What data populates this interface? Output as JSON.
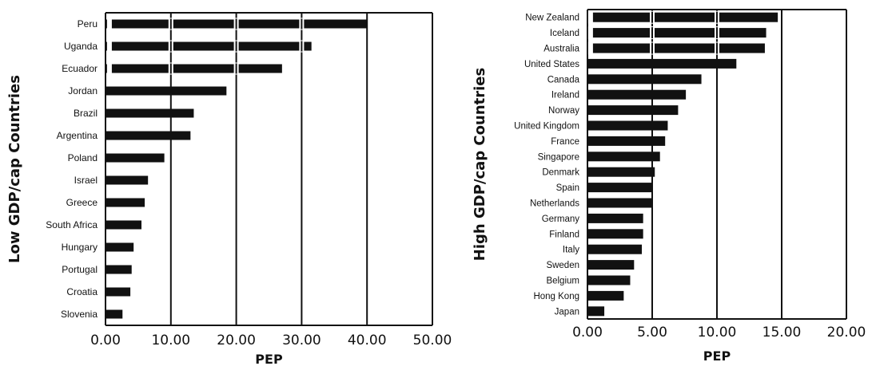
{
  "chart_data": [
    {
      "type": "bar",
      "orientation": "horizontal",
      "ylabel": "Low GDP/cap Countries",
      "xlabel": "PEP",
      "xlim": [
        0,
        50
      ],
      "xticks": [
        "0.00",
        "10.00",
        "20.00",
        "30.00",
        "40.00",
        "50.00"
      ],
      "grid": "vertical lines",
      "axis_break": "dashed breaks on the longest bars",
      "categories": [
        "Peru",
        "Uganda",
        "Ecuador",
        "Jordan",
        "Brazil",
        "Argentina",
        "Poland",
        "Israel",
        "Greece",
        "South Africa",
        "Hungary",
        "Portugal",
        "Croatia",
        "Slovenia"
      ],
      "values": [
        40,
        31.5,
        27,
        18.5,
        13.5,
        13,
        9,
        6.5,
        6,
        5.5,
        4.3,
        4,
        3.8,
        2.6
      ],
      "color": "#111111"
    },
    {
      "type": "bar",
      "orientation": "horizontal",
      "ylabel": "High GDP/cap Countries",
      "xlabel": "PEP",
      "xlim": [
        0,
        20
      ],
      "xticks": [
        "0.00",
        "5.00",
        "10.00",
        "15.00",
        "20.00"
      ],
      "grid": "vertical lines",
      "axis_break": "dashed breaks on the longest bars",
      "categories": [
        "New Zealand",
        "Iceland",
        "Australia",
        "United States",
        "Canada",
        "Ireland",
        "Norway",
        "United Kingdom",
        "France",
        "Singapore",
        "Denmark",
        "Spain",
        "Netherlands",
        "Germany",
        "Finland",
        "Italy",
        "Sweden",
        "Belgium",
        "Hong Kong",
        "Japan"
      ],
      "values": [
        14.7,
        13.8,
        13.7,
        11.5,
        8.8,
        7.6,
        7.0,
        6.2,
        6.0,
        5.6,
        5.2,
        5.0,
        5.0,
        4.3,
        4.3,
        4.2,
        3.6,
        3.3,
        2.8,
        1.3
      ],
      "color": "#111111"
    }
  ]
}
